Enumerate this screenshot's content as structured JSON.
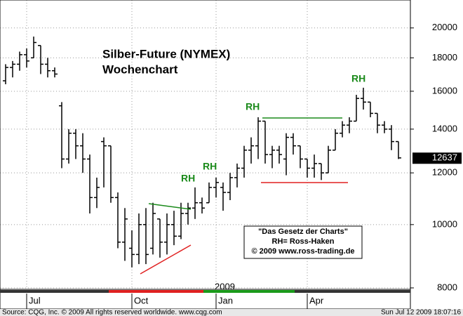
{
  "chart_data": {
    "type": "ohlc",
    "title": "Silber-Future (NYMEX)",
    "subtitle": "Wochenchart",
    "categories": [
      null,
      null,
      null,
      "Jul",
      null,
      null,
      null,
      null,
      null,
      null,
      null,
      null,
      null,
      null,
      null,
      null,
      null,
      null,
      "Oct",
      null,
      null,
      null,
      null,
      null,
      null,
      null,
      null,
      null,
      null,
      null,
      "Jan",
      null,
      null,
      null,
      null,
      null,
      null,
      null,
      null,
      null,
      null,
      null,
      null,
      "Apr",
      null,
      null,
      null,
      null,
      null,
      null,
      null,
      null,
      null,
      null,
      null,
      null,
      null
    ],
    "year_label": "2009",
    "open": [
      16600,
      17400,
      17600,
      18200,
      18000,
      18800,
      17600,
      17200,
      15200,
      12600,
      13800,
      13200,
      12600,
      11000,
      13400,
      13200,
      11000,
      9400,
      9200,
      9000,
      10000,
      9200,
      10200,
      9400,
      10000,
      9600,
      10400,
      10600,
      10800,
      10800,
      11400,
      11400,
      11200,
      11800,
      12200,
      13000,
      13200,
      14400,
      12800,
      13000,
      12600,
      13600,
      13200,
      12600,
      12200,
      12400,
      12000,
      13000,
      13800,
      14200,
      14400,
      15600,
      15400,
      14800,
      14200,
      14000,
      13400
    ],
    "high": [
      17600,
      17800,
      18400,
      18600,
      19400,
      18800,
      18000,
      17400,
      15400,
      14000,
      14000,
      13800,
      12800,
      11800,
      13600,
      13200,
      11200,
      10600,
      9800,
      10400,
      10600,
      10800,
      10200,
      10400,
      10500,
      10800,
      10800,
      11400,
      11000,
      11600,
      11800,
      11600,
      12000,
      12400,
      13200,
      13600,
      14600,
      14400,
      13200,
      13200,
      13800,
      13800,
      13200,
      12600,
      12800,
      12400,
      13200,
      14000,
      14400,
      14600,
      15800,
      16200,
      15400,
      14800,
      14400,
      14200,
      13400
    ],
    "low": [
      16400,
      16800,
      17200,
      17400,
      18000,
      17000,
      16800,
      16800,
      12200,
      12400,
      12600,
      12000,
      10400,
      10600,
      11400,
      10800,
      9200,
      8800,
      8600,
      8700,
      8700,
      9000,
      8900,
      9000,
      9300,
      9500,
      10000,
      10200,
      10400,
      10800,
      11000,
      10500,
      10900,
      11400,
      11800,
      12400,
      12600,
      12400,
      12200,
      12400,
      11900,
      12800,
      12200,
      11800,
      11800,
      11700,
      12000,
      13000,
      13600,
      13800,
      14400,
      15000,
      14600,
      13800,
      13800,
      13000,
      12600
    ],
    "close": [
      17400,
      17600,
      18200,
      17800,
      19000,
      17600,
      17200,
      17000,
      12600,
      13800,
      13200,
      12600,
      11000,
      11400,
      13200,
      11000,
      9400,
      10200,
      9000,
      10000,
      9000,
      10400,
      9400,
      10000,
      9600,
      10400,
      10600,
      10800,
      10600,
      11400,
      11600,
      11200,
      11800,
      12200,
      13000,
      13200,
      14400,
      12800,
      13000,
      12800,
      13600,
      13200,
      12600,
      12200,
      12400,
      12000,
      13000,
      13800,
      14200,
      14400,
      15600,
      15400,
      14800,
      14200,
      14000,
      13400,
      12650
    ],
    "color": "#000000",
    "last_price": 12637,
    "ylim": [
      7960,
      22070
    ],
    "yticks": [
      8000,
      10000,
      12000,
      14000,
      16000,
      18000,
      20000
    ],
    "log_scale": true,
    "grid": true,
    "annotations": [
      "RH",
      "RH",
      "RH",
      "RH"
    ],
    "info_box": [
      "\"Das Gesetz der Charts\"",
      "RH= Ross-Haken",
      "© 2009  www.ross-trading.de"
    ]
  },
  "footer": {
    "source": "Source: CQG, Inc. © 2009 All rights reserved worldwide. www.cqg.com",
    "timestamp": "Sun Jul 12 2009 18:07:16"
  }
}
